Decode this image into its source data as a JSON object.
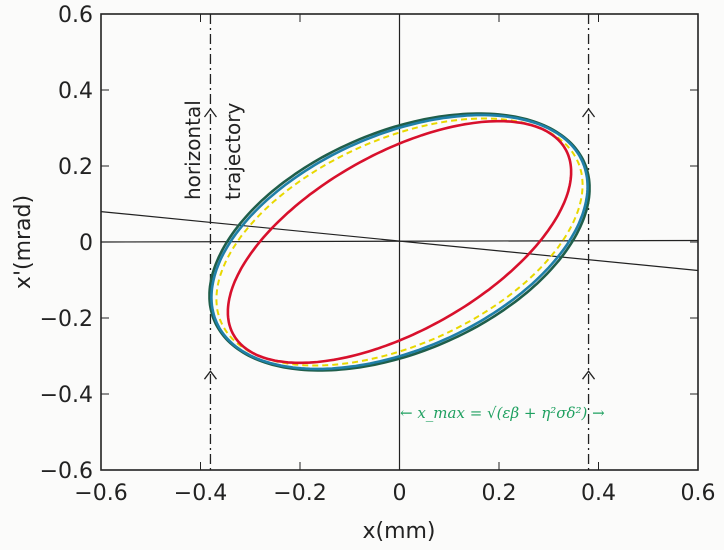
{
  "chart_data": {
    "type": "line",
    "title": "",
    "xlabel": "x(mm)",
    "ylabel": "x'(mrad)",
    "xlim": [
      -0.6,
      0.6
    ],
    "ylim": [
      -0.6,
      0.6
    ],
    "xticks": [
      "-0.6",
      "-0.4",
      "-0.2",
      "0",
      "0.2",
      "0.4",
      "0.6"
    ],
    "yticks": [
      "0.6",
      "0.4",
      "0.2",
      "0",
      "-0.2",
      "-0.4",
      "-0.6"
    ],
    "xtick_values": [
      -0.6,
      -0.4,
      -0.2,
      0,
      0.2,
      0.4,
      0.6
    ],
    "ytick_values": [
      0.6,
      0.4,
      0.2,
      0,
      -0.2,
      -0.4,
      -0.6
    ],
    "grid": false,
    "ellipses": [
      {
        "name": "outer ellipse (green)",
        "color": "#1f5e4a",
        "x_max": 0.382,
        "xp_max": 0.338,
        "x_at_xp_max": 0.16,
        "dash": false
      },
      {
        "name": "outer ellipse (blue)",
        "color": "#1f7fa8",
        "x_max": 0.378,
        "xp_max": 0.334,
        "x_at_xp_max": 0.165,
        "dash": false
      },
      {
        "name": "yellow dashed ellipse",
        "color": "#e8d800",
        "x_max": 0.368,
        "xp_max": 0.325,
        "x_at_xp_max": 0.17,
        "dash": true
      },
      {
        "name": "inner ellipse (red)",
        "color": "#d8102c",
        "x_max": 0.345,
        "xp_max": 0.318,
        "x_at_xp_max": 0.2,
        "dash": false
      }
    ],
    "lines": [
      {
        "name": "sloped line",
        "x": [
          -0.6,
          0.6
        ],
        "y": [
          0.08,
          -0.075
        ]
      },
      {
        "name": "x axis line",
        "x": [
          -0.6,
          0.6
        ],
        "y": [
          0.0,
          0.004
        ]
      },
      {
        "name": "x'=0 vertical",
        "x": [
          0,
          0
        ],
        "y": [
          -0.6,
          0.6
        ]
      }
    ],
    "aperture_lines": {
      "x": [
        -0.38,
        0.38
      ],
      "arrow_y": [
        0.35,
        -0.34
      ]
    },
    "annotations": {
      "trajectory_label_1": "horizontal",
      "trajectory_label_2": "trajectory",
      "equation": "← x_max = √(εβ + η²σδ²) →"
    }
  }
}
